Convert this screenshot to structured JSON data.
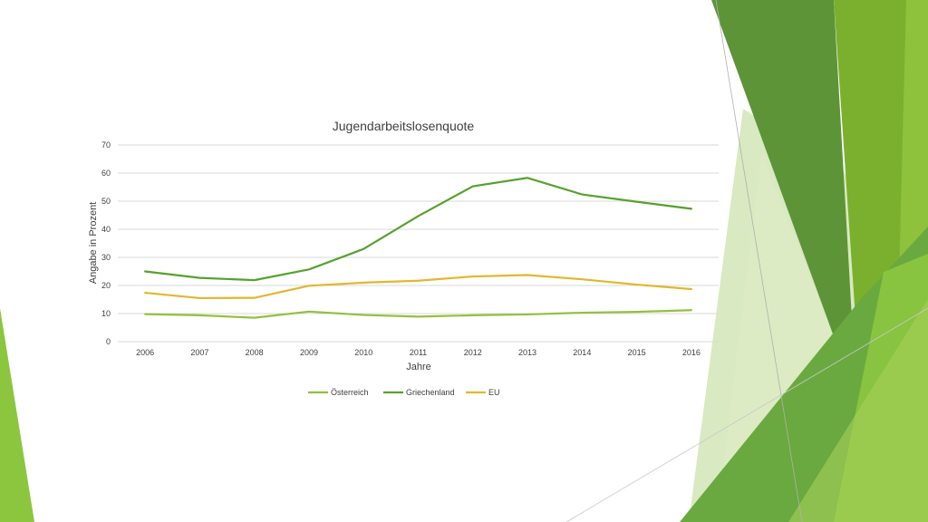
{
  "colors": {
    "oesterreich": "#92c13e",
    "griechenland": "#57a12e",
    "eu": "#e2b72b",
    "grid": "#d9d9d9",
    "text": "#404040"
  },
  "chart_data": {
    "type": "line",
    "title": "Jugendarbeitslosenquote",
    "xlabel": "Jahre",
    "ylabel": "Angabe in Prozent",
    "categories": [
      "2006",
      "2007",
      "2008",
      "2009",
      "2010",
      "2011",
      "2012",
      "2013",
      "2014",
      "2015",
      "2016"
    ],
    "ylim": [
      0,
      70
    ],
    "yticks": [
      "0",
      "10",
      "20",
      "30",
      "40",
      "50",
      "60",
      "70"
    ],
    "grid": true,
    "legend_position": "bottom",
    "series": [
      {
        "name": "Österreich",
        "color": "#92c13e",
        "values": [
          9.8,
          9.4,
          8.5,
          10.7,
          9.5,
          8.9,
          9.4,
          9.7,
          10.3,
          10.6,
          11.2
        ]
      },
      {
        "name": "Griechenland",
        "color": "#57a12e",
        "values": [
          25.0,
          22.7,
          21.9,
          25.7,
          33.0,
          44.7,
          55.3,
          58.3,
          52.4,
          49.8,
          47.3
        ]
      },
      {
        "name": "EU",
        "color": "#e2b72b",
        "values": [
          17.4,
          15.5,
          15.6,
          19.9,
          21.0,
          21.7,
          23.2,
          23.7,
          22.2,
          20.3,
          18.7
        ]
      }
    ]
  }
}
